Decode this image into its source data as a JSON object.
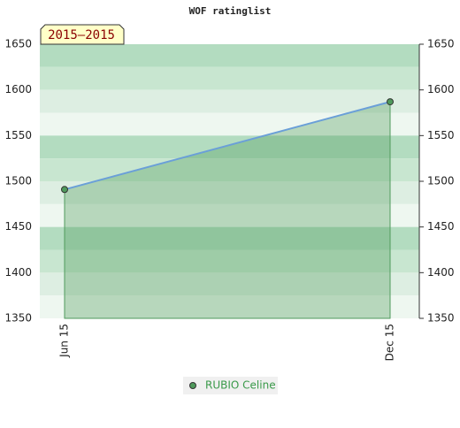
{
  "chart_data": {
    "type": "area",
    "title": "WOF ratinglist",
    "period": "2015–2015",
    "categories": [
      "Jun 15",
      "Dec 15"
    ],
    "series": [
      {
        "name": "RUBIO Celine",
        "color": "#4f9a5c",
        "values": [
          1491,
          1587
        ]
      }
    ],
    "ylim": [
      1350,
      1650
    ],
    "yticks": [
      1350,
      1400,
      1450,
      1500,
      1550,
      1600,
      1650
    ]
  }
}
